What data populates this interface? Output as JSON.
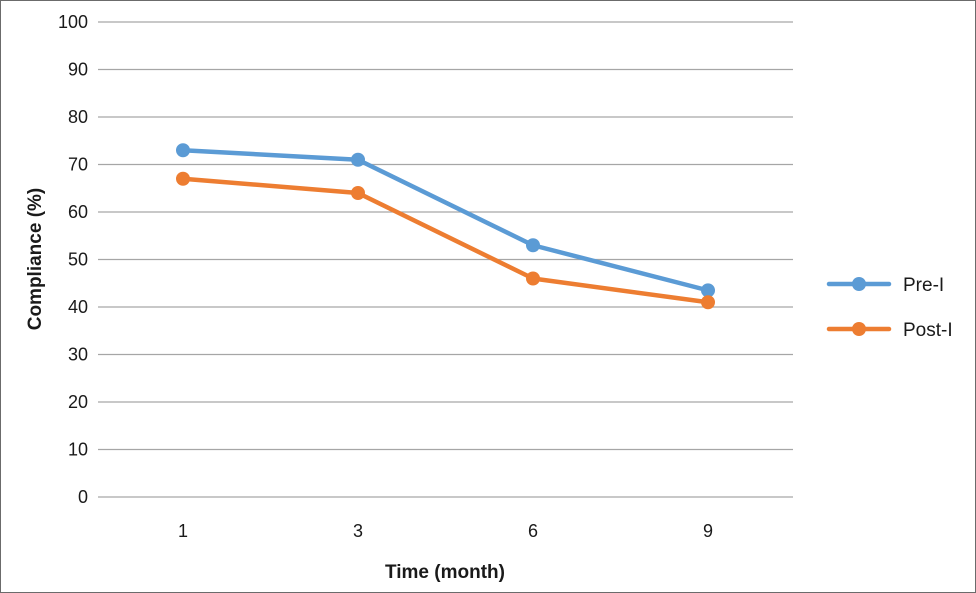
{
  "chart_data": {
    "type": "line",
    "title": "",
    "xlabel": "Time (month)",
    "ylabel": "Compliance (%)",
    "categories": [
      "1",
      "3",
      "6",
      "9"
    ],
    "ylim": [
      0,
      100
    ],
    "yticks": [
      "0",
      "10",
      "20",
      "30",
      "40",
      "50",
      "60",
      "70",
      "80",
      "90",
      "100"
    ],
    "grid": true,
    "legend_position": "right",
    "series": [
      {
        "name": "Pre-I",
        "values": [
          73,
          71,
          53,
          43.5
        ],
        "color": "#5b9bd5"
      },
      {
        "name": "Post-I",
        "values": [
          67,
          64,
          46,
          41
        ],
        "color": "#ed7d31"
      }
    ]
  }
}
